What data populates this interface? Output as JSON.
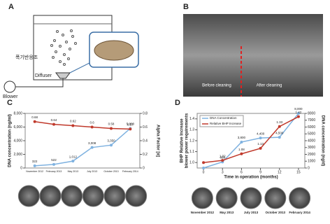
{
  "panels": {
    "a": {
      "label": "A",
      "tank": "폭기반응조",
      "diffuser": "Diffuser",
      "blower": "Blower"
    },
    "b": {
      "label": "B",
      "before": "Before cleaning",
      "after": "After cleaning"
    }
  },
  "chart_data": [
    {
      "type": "line",
      "panel_label": "C",
      "categories": [
        "November 2012",
        "February 2013",
        "May 2013",
        "July 2013",
        "October 2013",
        "February 2014"
      ],
      "series": [
        {
          "name": "DNA concentration",
          "color": "#7fb2e0",
          "values": [
            322,
            522,
            1012,
            3008,
            3350,
            5800
          ],
          "value_labels": [
            "322",
            "522",
            "1,012",
            "3,008",
            "3,350",
            "5,800"
          ]
        },
        {
          "name": "Alpha Factor",
          "color": "#c0392b",
          "axis": "y2",
          "values": [
            0.68,
            0.64,
            0.62,
            0.6,
            0.58,
            0.57
          ]
        }
      ],
      "ylim": [
        0,
        8000
      ],
      "yticks": [
        0,
        {
          "value": 2000,
          "label": "2,000"
        },
        {
          "value": 4000,
          "label": "4,000"
        },
        {
          "value": 6000,
          "label": "6,000"
        },
        {
          "value": 8000,
          "label": "8,000"
        }
      ],
      "y2lim": [
        0,
        0.8
      ],
      "y2ticks": [
        0,
        0.2,
        0.4,
        0.6,
        0.8
      ],
      "y_label": "DNA concentration (ng/ml)",
      "y2_label": "Alpha Factor [α]"
    },
    {
      "type": "line",
      "panel_label": "D",
      "x": [
        0,
        3,
        6,
        9,
        12,
        15
      ],
      "xlim": [
        -1,
        16
      ],
      "xticks": [
        0,
        3,
        6,
        9,
        12,
        15
      ],
      "series": [
        {
          "name": "DNA Concentration",
          "color": "#7fb2e0",
          "axis": "y2",
          "values": [
            0,
            888,
            3800,
            4400,
            4500,
            8000
          ],
          "value_labels": [
            null,
            "888",
            "3,800",
            "4,400",
            "4,500",
            "8,000"
          ]
        },
        {
          "name": "Relative BHP Increase",
          "color": "#c0392b",
          "values": [
            1.0,
            1.02,
            1.08,
            1.13,
            1.33,
            1.42
          ],
          "value_labels": [
            null,
            "1.02",
            "1.08",
            "1.13",
            "1.33",
            "1.42"
          ]
        }
      ],
      "ylim": [
        0.95,
        1.45
      ],
      "yticks": [
        {
          "value": 1.0,
          "label": "1.0"
        },
        1.1,
        1.2,
        1.3,
        1.4
      ],
      "y2lim": [
        0,
        8000
      ],
      "y2ticks": [
        0,
        1000,
        2000,
        3000,
        4000,
        5000,
        6000,
        7000,
        8000
      ],
      "x_label": "Time in operation (months)",
      "y_label": "BHP Relative Increase",
      "y_label_2": "blower power requirements",
      "y2_label": "DNA concentration (ng/d)",
      "legend": "top-left",
      "photo_captions": [
        "November 2012",
        "May 2013",
        "July 2013",
        "October 2013",
        "February 2014"
      ]
    }
  ]
}
